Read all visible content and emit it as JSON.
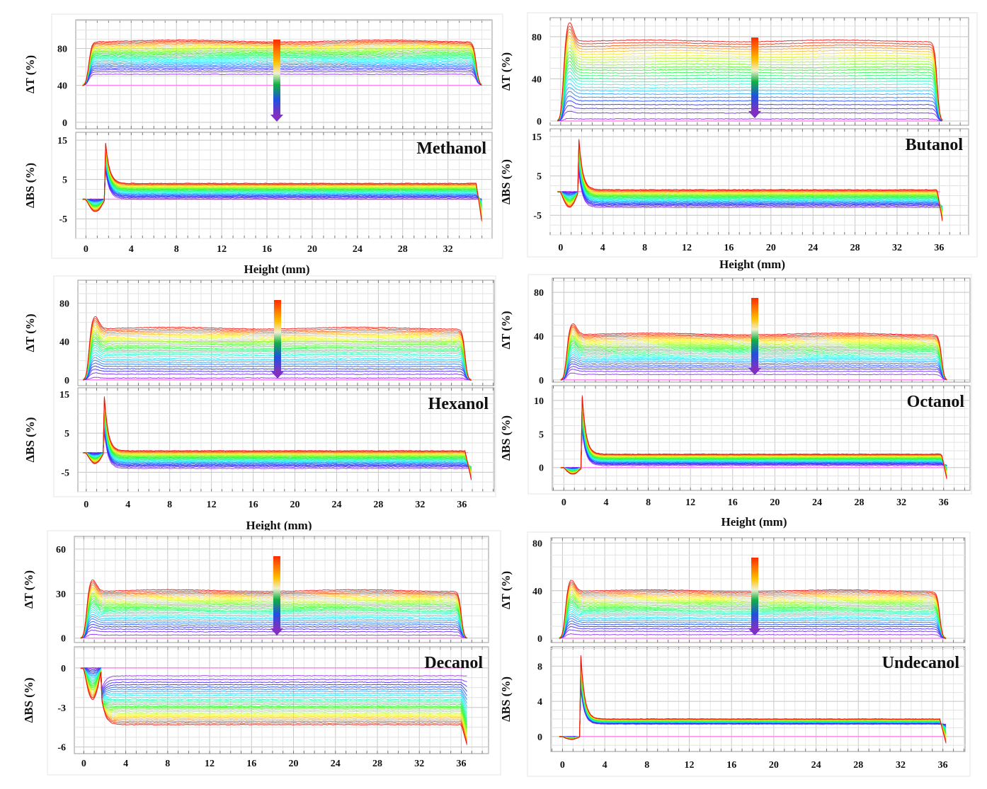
{
  "chart_data": [
    {
      "type": "line",
      "title": "Methanol",
      "xlabel": "Height (mm)",
      "xticks": [
        0,
        4,
        8,
        12,
        16,
        20,
        24,
        28,
        32
      ],
      "xlim": [
        -0.9,
        35.9
      ],
      "sample_range_mm": [
        0,
        34.5
      ],
      "transmission": {
        "ylabel": "ΔT (%)",
        "yticks": [
          0,
          40,
          80
        ],
        "ylim": [
          -7,
          111
        ],
        "plateau_range": [
          52,
          88
        ],
        "baseline": 40
      },
      "backscattering": {
        "ylabel": "ΔBS (%)",
        "yticks": [
          -5,
          5,
          15
        ],
        "ylim": [
          -10,
          17
        ],
        "plateau_range": [
          0,
          4
        ],
        "baseline": 0,
        "start_spike": 14,
        "end_value": -8
      }
    },
    {
      "type": "line",
      "title": "Butanol",
      "xlabel": "Height (mm)",
      "xticks": [
        0,
        4,
        8,
        12,
        16,
        20,
        24,
        28,
        32,
        36
      ],
      "xlim": [
        -1,
        38.8
      ],
      "sample_range_mm": [
        0,
        35.8
      ],
      "transmission": {
        "ylabel": "ΔT (%)",
        "yticks": [
          0,
          40,
          80
        ],
        "ylim": [
          -4,
          98
        ],
        "plateau_range": [
          2,
          76
        ],
        "baseline": 0
      },
      "backscattering": {
        "ylabel": "ΔBS (%)",
        "yticks": [
          -5,
          5,
          15
        ],
        "ylim": [
          -10,
          17
        ],
        "plateau_range": [
          -3,
          1.5
        ],
        "baseline": 1,
        "start_spike": 14,
        "end_value": -8
      }
    },
    {
      "type": "line",
      "title": "Hexanol",
      "xlabel": "Height (mm)",
      "xticks": [
        0,
        4,
        8,
        12,
        16,
        20,
        24,
        28,
        32,
        36
      ],
      "xlim": [
        -0.8,
        39.1
      ],
      "sample_range_mm": [
        0,
        36.3
      ],
      "transmission": {
        "ylabel": "ΔT (%)",
        "yticks": [
          0,
          40,
          80
        ],
        "ylim": [
          -6,
          104
        ],
        "plateau_range": [
          2,
          54
        ],
        "baseline": 0
      },
      "backscattering": {
        "ylabel": "ΔBS (%)",
        "yticks": [
          -5,
          5,
          15
        ],
        "ylim": [
          -10,
          16.6
        ],
        "plateau_range": [
          -4,
          0.5
        ],
        "baseline": 0,
        "start_spike": 14,
        "end_value": -7
      }
    },
    {
      "type": "line",
      "title": "Octanol",
      "xlabel": "Height (mm)",
      "xticks": [
        0,
        4,
        8,
        12,
        16,
        20,
        24,
        28,
        32,
        36
      ],
      "xlim": [
        -1.1,
        38.5
      ],
      "sample_range_mm": [
        0,
        35.8
      ],
      "transmission": {
        "ylabel": "ΔT (%)",
        "yticks": [
          0,
          40,
          80
        ],
        "ylim": [
          -2,
          93
        ],
        "plateau_range": [
          5,
          42
        ],
        "baseline": 0
      },
      "backscattering": {
        "ylabel": "ΔBS (%)",
        "yticks": [
          0,
          5,
          10
        ],
        "ylim": [
          -3.4,
          12.2
        ],
        "plateau_range": [
          0.3,
          2
        ],
        "baseline": 0,
        "start_spike": 10.5,
        "end_value": -2.5
      }
    },
    {
      "type": "line",
      "title": "Decanol",
      "xlabel": "",
      "xticks": [
        0,
        4,
        8,
        12,
        16,
        20,
        24,
        28,
        32,
        36
      ],
      "xlim": [
        -0.9,
        38.6
      ],
      "sample_range_mm": [
        0,
        36
      ],
      "transmission": {
        "ylabel": "ΔT (%)",
        "yticks": [
          0,
          30,
          60
        ],
        "ylim": [
          -3,
          68.5
        ],
        "plateau_range": [
          2,
          32
        ],
        "baseline": 0
      },
      "backscattering": {
        "ylabel": "ΔBS (%)",
        "yticks": [
          -6,
          -3,
          0
        ],
        "ylim": [
          -6.5,
          1.6
        ],
        "plateau_range": [
          -0.6,
          -4.3
        ],
        "baseline": 0,
        "start_spike": -2.5,
        "end_value": -6
      }
    },
    {
      "type": "line",
      "title": "Undecanol",
      "xlabel": "",
      "xticks": [
        0,
        4,
        8,
        12,
        16,
        20,
        24,
        28,
        32,
        36
      ],
      "xlim": [
        -1.1,
        38.1
      ],
      "sample_range_mm": [
        0,
        35.7
      ],
      "transmission": {
        "ylabel": "ΔT (%)",
        "yticks": [
          0,
          40,
          80
        ],
        "ylim": [
          -3.6,
          84.5
        ],
        "plateau_range": [
          3,
          40
        ],
        "baseline": 0
      },
      "backscattering": {
        "ylabel": "ΔBS (%)",
        "yticks": [
          0,
          4,
          8
        ],
        "ylim": [
          -1.7,
          10.2
        ],
        "plateau_range": [
          1.4,
          2
        ],
        "baseline": 0,
        "start_spike": 9,
        "end_value": -0.8
      }
    }
  ],
  "colors": {
    "latest_curve": "#ff0000",
    "earliest_curve": "#7a3fd0",
    "baseline": "#ff88ee",
    "grid": "#d8d8d8"
  }
}
